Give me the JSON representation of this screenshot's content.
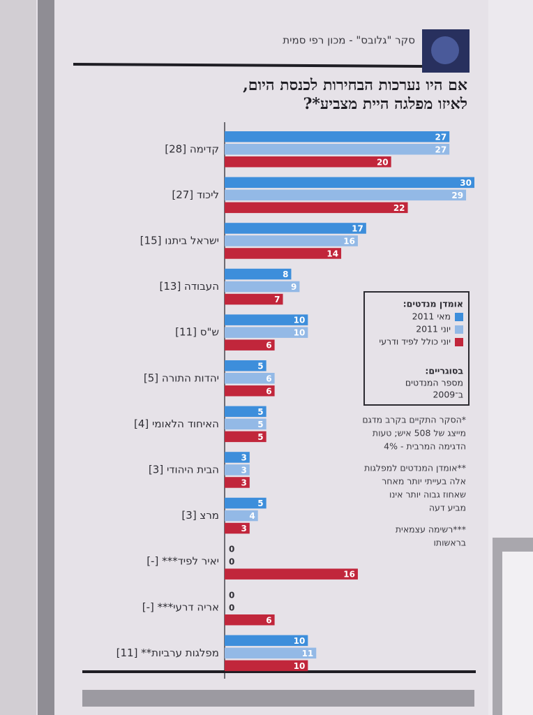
{
  "chart_data": {
    "type": "bar",
    "orientation": "horizontal",
    "header": "סקר \"גלובס\" - מכון רפי סמית",
    "title": [
      "אם היו נערכות הבחירות לכנסת היום,",
      "לאיזו מפלגה היית מצביע*?"
    ],
    "categories": [
      "קדימה [28]",
      "ליכוד [27]",
      "ישראל ביתנו [15]",
      "העבודה [13]",
      "ש\"ס [11]",
      "יהדות התורה [5]",
      "האיחוד הלאומי [4]",
      "הבית היהודי [3]",
      "מרצ [3]",
      "יאיר לפיד*** [-]",
      "אריה דרעי*** [-]",
      "מפלגות ערביות** [11]"
    ],
    "series": [
      {
        "name": "מאי 2011",
        "color": "#3d8edb",
        "values": [
          27,
          30,
          17,
          8,
          10,
          5,
          5,
          3,
          5,
          0,
          0,
          10
        ]
      },
      {
        "name": "יוני 2011",
        "color": "#93b9e6",
        "values": [
          27,
          29,
          16,
          9,
          10,
          6,
          5,
          3,
          4,
          0,
          0,
          11
        ]
      },
      {
        "name": "יוני כולל לפיד ודרעי",
        "color": "#c1263b",
        "values": [
          20,
          22,
          14,
          7,
          6,
          6,
          5,
          3,
          3,
          16,
          6,
          10
        ]
      }
    ],
    "legend_title": "אומדן מנדטים:",
    "legend_note": [
      "בסוגריים:",
      "מספר המנדטים",
      "ב־2009"
    ],
    "notes": [
      [
        "*הסקר התקיים בקרב מדגם",
        "מייצג של 508 איש; טעות",
        "הדגימה המרבית - 4%"
      ],
      [
        "**אומדן המנדטים למפלגות",
        "אלה בעייתי יותר מאחר",
        "שאחוז גבוה יותר אינו",
        "מביע דעה"
      ],
      [
        "***רשימה עצמאית",
        "בראשותו"
      ]
    ]
  }
}
